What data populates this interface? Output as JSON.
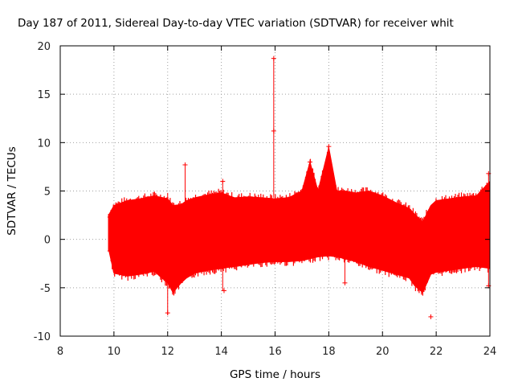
{
  "chart_data": {
    "type": "scatter",
    "title": "Day 187 of 2011, Sidereal Day-to-day VTEC variation (SDTVAR) for receiver whit",
    "xlabel": "GPS time / hours",
    "ylabel": "SDTVAR / TECUs",
    "xlim": [
      8,
      24
    ],
    "ylim": [
      -10,
      20
    ],
    "xticks": [
      8,
      10,
      12,
      14,
      16,
      18,
      20,
      22,
      24
    ],
    "yticks": [
      -10,
      -5,
      0,
      5,
      10,
      15,
      20
    ],
    "grid": true,
    "series_color": "#ff0000",
    "x_start": 9.8,
    "x_end": 24,
    "envelope": {
      "x": [
        9.8,
        10.0,
        10.5,
        11.0,
        11.5,
        12.0,
        12.2,
        12.5,
        12.7,
        13.0,
        13.5,
        14.0,
        14.5,
        15.0,
        15.5,
        16.0,
        16.5,
        17.0,
        17.3,
        17.6,
        18.0,
        18.3,
        18.6,
        19.0,
        19.5,
        20.0,
        20.5,
        21.0,
        21.2,
        21.5,
        21.8,
        22.0,
        22.5,
        23.0,
        23.5,
        24.0
      ],
      "upper": [
        2.5,
        3.5,
        4.0,
        4.2,
        4.5,
        4.2,
        3.5,
        3.6,
        4.0,
        4.3,
        4.6,
        4.8,
        4.3,
        4.4,
        4.3,
        4.2,
        4.3,
        5.0,
        8.0,
        5.0,
        9.5,
        5.0,
        5.0,
        4.8,
        5.0,
        4.5,
        3.8,
        3.2,
        2.6,
        1.8,
        3.5,
        4.0,
        4.2,
        4.4,
        4.5,
        6.0
      ],
      "lower": [
        -1.0,
        -3.5,
        -3.8,
        -3.6,
        -3.3,
        -4.5,
        -5.5,
        -4.5,
        -4.0,
        -3.5,
        -3.2,
        -3.0,
        -2.8,
        -2.6,
        -2.4,
        -2.3,
        -2.3,
        -2.2,
        -2.0,
        -1.8,
        -1.7,
        -1.8,
        -2.0,
        -2.3,
        -2.8,
        -3.2,
        -3.6,
        -4.0,
        -4.8,
        -5.5,
        -3.6,
        -3.4,
        -3.2,
        -3.0,
        -2.8,
        -3.0
      ]
    },
    "spikes": [
      {
        "x": 15.95,
        "ymin": 4.3,
        "ymax": 18.7
      },
      {
        "x": 12.0,
        "ymin": -7.8,
        "ymax": 4.8
      },
      {
        "x": 12.65,
        "ymin": 3.5,
        "ymax": 7.7
      },
      {
        "x": 14.05,
        "ymin": -5.3,
        "ymax": 6.0
      },
      {
        "x": 18.6,
        "ymin": -4.5,
        "ymax": -1.8
      },
      {
        "x": 21.8,
        "ymin": -8.0,
        "ymax": -7.8
      },
      {
        "x": 23.95,
        "ymin": -4.8,
        "ymax": 6.8
      },
      {
        "x": 9.85,
        "ymin": -1.2,
        "ymax": 2.3
      }
    ],
    "markers": [
      {
        "x": 15.95,
        "y": 18.7
      },
      {
        "x": 15.95,
        "y": 11.2
      },
      {
        "x": 12.0,
        "y": -7.6
      },
      {
        "x": 12.65,
        "y": 7.7
      },
      {
        "x": 14.05,
        "y": 6.0
      },
      {
        "x": 14.1,
        "y": -5.3
      },
      {
        "x": 18.6,
        "y": -4.5
      },
      {
        "x": 21.8,
        "y": -8.0
      },
      {
        "x": 23.95,
        "y": 6.8
      },
      {
        "x": 23.95,
        "y": -4.8
      },
      {
        "x": 9.85,
        "y": 2.3
      },
      {
        "x": 9.85,
        "y": -1.2
      },
      {
        "x": 17.3,
        "y": 8.0
      },
      {
        "x": 18.0,
        "y": 9.6
      }
    ]
  }
}
